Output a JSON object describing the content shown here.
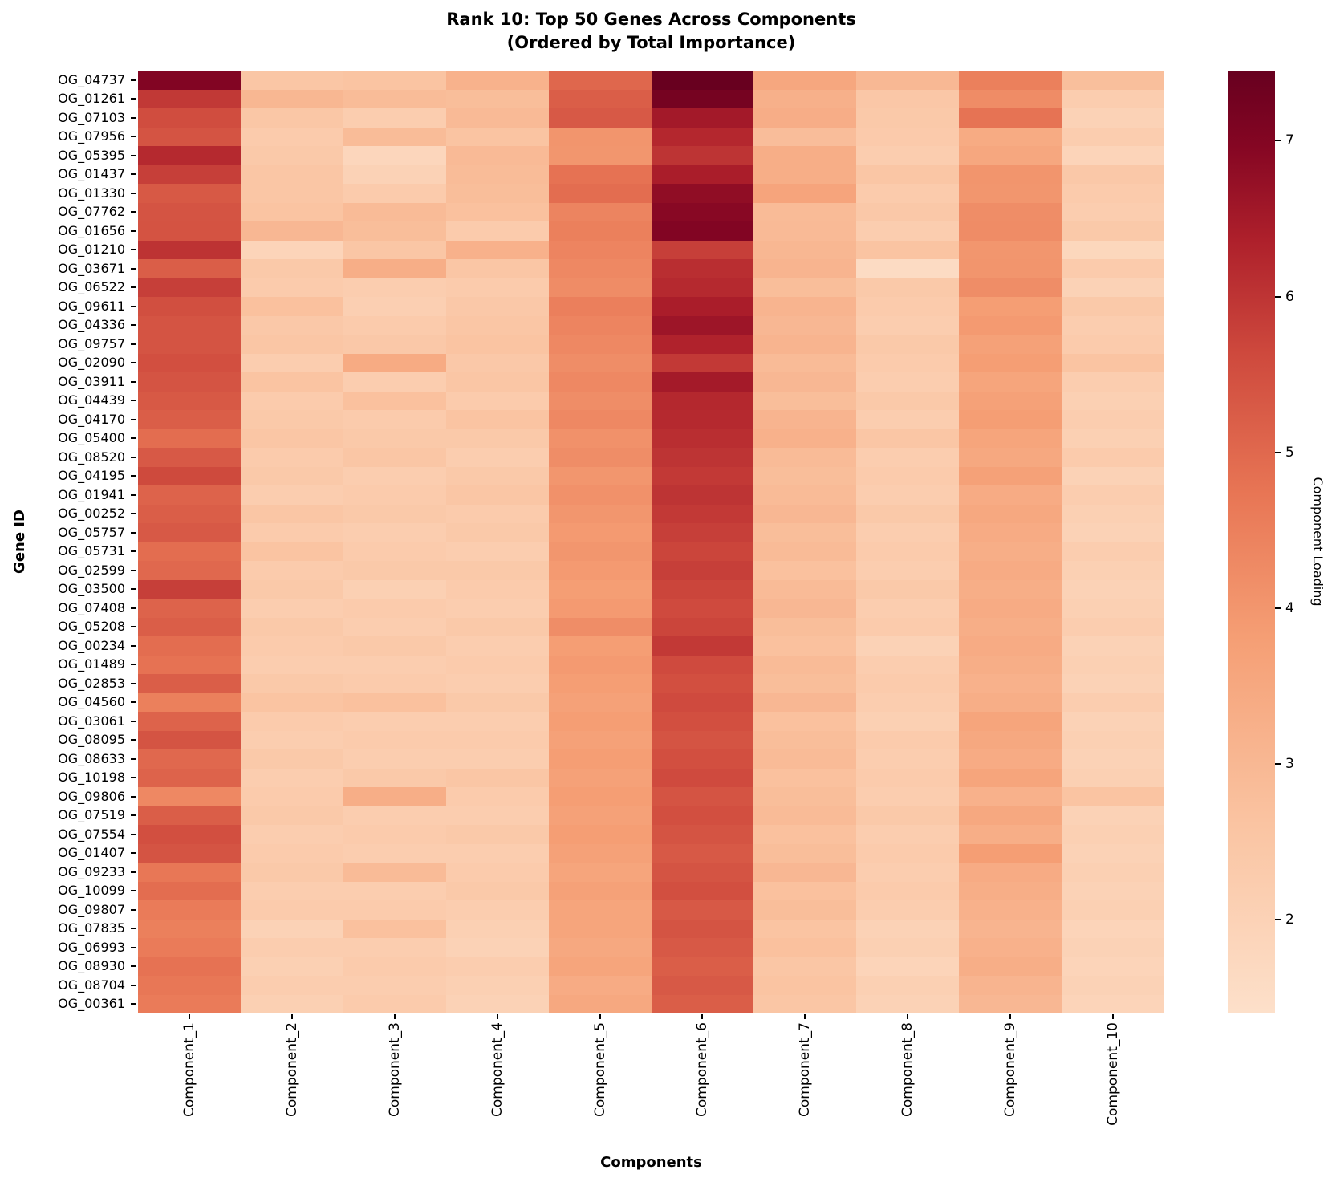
{
  "chart_data": {
    "type": "heatmap",
    "title": "Rank 10: Top 50 Genes Across Components (Ordered by Total Importance)",
    "title_line1": "Rank 10: Top 50 Genes Across Components",
    "title_line2": "(Ordered by Total Importance)",
    "xlabel": "Components",
    "ylabel": "Gene ID",
    "colorbar_label": "Component Loading",
    "colorbar_ticks": [
      7,
      6,
      5,
      4,
      3,
      2
    ],
    "vmin": 1.4,
    "vmax": 7.45,
    "legend_position": "right-colorbar",
    "grid": false,
    "colormap_stops": [
      [
        0.0,
        "#fde0ca"
      ],
      [
        0.2,
        "#fac4a2"
      ],
      [
        0.4,
        "#f59e74"
      ],
      [
        0.55,
        "#e87655"
      ],
      [
        0.7,
        "#ce493d"
      ],
      [
        0.82,
        "#ae202b"
      ],
      [
        0.92,
        "#850623"
      ],
      [
        1.0,
        "#67001f"
      ]
    ],
    "x_categories": [
      "Component_1",
      "Component_2",
      "Component_3",
      "Component_4",
      "Component_5",
      "Component_6",
      "Component_7",
      "Component_8",
      "Component_9",
      "Component_10"
    ],
    "y_categories": [
      "OG_04737",
      "OG_01261",
      "OG_07103",
      "OG_07956",
      "OG_05395",
      "OG_01437",
      "OG_01330",
      "OG_07762",
      "OG_01656",
      "OG_01210",
      "OG_03671",
      "OG_06522",
      "OG_09611",
      "OG_04336",
      "OG_09757",
      "OG_02090",
      "OG_03911",
      "OG_04439",
      "OG_04170",
      "OG_05400",
      "OG_08520",
      "OG_04195",
      "OG_01941",
      "OG_00252",
      "OG_05757",
      "OG_05731",
      "OG_02599",
      "OG_03500",
      "OG_07408",
      "OG_05208",
      "OG_00234",
      "OG_01489",
      "OG_02853",
      "OG_04560",
      "OG_03061",
      "OG_08095",
      "OG_08633",
      "OG_10198",
      "OG_09806",
      "OG_07519",
      "OG_07554",
      "OG_01407",
      "OG_09233",
      "OG_10099",
      "OG_09807",
      "OG_07835",
      "OG_06993",
      "OG_08930",
      "OG_08704",
      "OG_00361"
    ],
    "values": [
      [
        7.02,
        2.52,
        2.61,
        3.18,
        5.03,
        7.43,
        3.52,
        2.98,
        4.51,
        2.77
      ],
      [
        5.92,
        3.02,
        2.88,
        2.81,
        5.22,
        7.21,
        3.24,
        2.46,
        4.22,
        2.21
      ],
      [
        5.55,
        2.48,
        2.21,
        2.92,
        5.31,
        6.52,
        3.33,
        2.41,
        4.78,
        2.02
      ],
      [
        5.41,
        2.32,
        2.88,
        2.62,
        4.02,
        6.23,
        2.83,
        2.33,
        3.42,
        2.22
      ],
      [
        6.21,
        2.41,
        1.82,
        2.92,
        4.01,
        6.01,
        3.31,
        2.21,
        3.52,
        1.92
      ],
      [
        5.81,
        2.52,
        2.02,
        2.88,
        4.81,
        6.42,
        3.32,
        2.52,
        4.02,
        2.42
      ],
      [
        5.32,
        2.51,
        2.32,
        2.81,
        4.91,
        6.81,
        3.62,
        2.31,
        4.01,
        2.31
      ],
      [
        5.42,
        2.62,
        2.91,
        2.72,
        4.42,
        6.92,
        2.91,
        2.42,
        4.21,
        2.21
      ],
      [
        5.43,
        3.01,
        2.81,
        2.31,
        4.51,
        7.01,
        2.92,
        2.21,
        4.22,
        2.41
      ],
      [
        6.02,
        1.91,
        2.52,
        3.21,
        4.41,
        5.81,
        3.02,
        2.61,
        4.01,
        1.81
      ],
      [
        5.22,
        2.41,
        3.32,
        2.52,
        4.32,
        6.12,
        3.12,
        1.62,
        4.02,
        2.31
      ],
      [
        5.81,
        2.32,
        2.21,
        2.32,
        4.22,
        6.21,
        2.81,
        2.41,
        4.21,
        2.02
      ],
      [
        5.52,
        2.72,
        2.12,
        2.42,
        4.52,
        6.42,
        3.12,
        2.31,
        3.81,
        2.41
      ],
      [
        5.42,
        2.42,
        2.32,
        2.52,
        4.41,
        6.61,
        3.01,
        2.21,
        3.91,
        2.21
      ],
      [
        5.41,
        2.52,
        2.42,
        2.61,
        4.31,
        6.32,
        3.11,
        2.41,
        3.71,
        2.31
      ],
      [
        5.51,
        2.21,
        3.42,
        2.42,
        4.21,
        5.91,
        2.91,
        2.31,
        3.81,
        2.61
      ],
      [
        5.42,
        2.61,
        2.21,
        2.51,
        4.31,
        6.51,
        3.01,
        2.21,
        3.61,
        2.21
      ],
      [
        5.32,
        2.32,
        2.71,
        2.31,
        4.21,
        6.22,
        2.81,
        2.41,
        3.71,
        2.11
      ],
      [
        5.21,
        2.41,
        2.31,
        2.61,
        4.31,
        6.21,
        3.11,
        2.21,
        3.81,
        2.21
      ],
      [
        4.91,
        2.51,
        2.41,
        2.41,
        4.11,
        6.11,
        3.21,
        2.51,
        3.61,
        2.11
      ],
      [
        5.31,
        2.31,
        2.51,
        2.21,
        4.21,
        6.01,
        2.91,
        2.21,
        3.51,
        2.31
      ],
      [
        5.62,
        2.41,
        2.21,
        2.41,
        4.01,
        5.91,
        2.81,
        2.31,
        3.71,
        2.01
      ],
      [
        5.11,
        2.21,
        2.31,
        2.51,
        4.11,
        6.01,
        2.91,
        2.21,
        3.41,
        2.21
      ],
      [
        5.21,
        2.51,
        2.41,
        2.31,
        4.01,
        5.91,
        3.01,
        2.41,
        3.51,
        2.11
      ],
      [
        5.31,
        2.31,
        2.21,
        2.41,
        3.91,
        5.81,
        2.81,
        2.21,
        3.41,
        2.01
      ],
      [
        4.91,
        2.61,
        2.31,
        2.21,
        4.01,
        5.71,
        2.91,
        2.31,
        3.31,
        2.21
      ],
      [
        5.01,
        2.31,
        2.41,
        2.41,
        3.91,
        5.81,
        2.71,
        2.21,
        3.41,
        2.11
      ],
      [
        5.81,
        2.41,
        2.11,
        2.31,
        3.81,
        5.71,
        2.91,
        2.41,
        3.31,
        2.01
      ],
      [
        5.11,
        2.21,
        2.31,
        2.21,
        3.91,
        5.61,
        3.01,
        2.21,
        3.41,
        2.11
      ],
      [
        5.21,
        2.41,
        2.21,
        2.41,
        4.21,
        5.71,
        2.81,
        2.31,
        3.31,
        2.21
      ],
      [
        4.91,
        2.31,
        2.41,
        2.21,
        3.81,
        5.91,
        2.71,
        2.01,
        3.41,
        2.01
      ],
      [
        4.81,
        2.21,
        2.21,
        2.31,
        3.91,
        5.61,
        2.91,
        2.21,
        3.31,
        2.11
      ],
      [
        5.21,
        2.41,
        2.31,
        2.21,
        3.81,
        5.51,
        2.81,
        2.31,
        3.21,
        2.01
      ],
      [
        4.51,
        2.61,
        2.71,
        2.41,
        3.71,
        5.61,
        3.01,
        2.21,
        3.31,
        2.21
      ],
      [
        5.11,
        2.31,
        2.21,
        2.21,
        3.81,
        5.51,
        2.71,
        2.11,
        3.61,
        2.01
      ],
      [
        5.41,
        2.21,
        2.31,
        2.31,
        3.71,
        5.41,
        2.81,
        2.31,
        3.51,
        2.11
      ],
      [
        5.01,
        2.41,
        2.21,
        2.21,
        3.81,
        5.51,
        2.91,
        2.21,
        3.41,
        2.01
      ],
      [
        5.11,
        2.21,
        2.41,
        2.51,
        3.71,
        5.61,
        2.71,
        2.31,
        3.61,
        2.11
      ],
      [
        4.31,
        2.31,
        3.31,
        2.31,
        3.81,
        5.41,
        2.81,
        2.21,
        3.21,
        2.61
      ],
      [
        5.21,
        2.41,
        2.21,
        2.21,
        3.71,
        5.51,
        2.91,
        2.41,
        3.51,
        2.01
      ],
      [
        5.51,
        2.21,
        2.31,
        2.41,
        3.81,
        5.41,
        2.71,
        2.21,
        3.31,
        2.11
      ],
      [
        5.41,
        2.31,
        2.21,
        2.21,
        3.71,
        5.31,
        2.81,
        2.31,
        3.81,
        2.01
      ],
      [
        4.71,
        2.41,
        2.91,
        2.31,
        3.61,
        5.41,
        3.01,
        2.21,
        3.41,
        2.11
      ],
      [
        4.91,
        2.21,
        2.21,
        2.41,
        3.71,
        5.51,
        2.71,
        2.31,
        3.31,
        2.01
      ],
      [
        4.61,
        2.31,
        2.31,
        2.21,
        3.61,
        5.31,
        2.81,
        2.21,
        3.21,
        2.11
      ],
      [
        4.51,
        2.01,
        2.71,
        2.11,
        3.61,
        5.41,
        2.61,
        2.01,
        3.11,
        1.91
      ],
      [
        4.61,
        2.21,
        2.21,
        2.01,
        3.51,
        5.31,
        2.71,
        2.11,
        3.21,
        2.01
      ],
      [
        4.81,
        2.11,
        2.31,
        2.21,
        3.61,
        5.21,
        2.51,
        1.91,
        3.31,
        1.91
      ],
      [
        4.71,
        2.21,
        2.21,
        2.11,
        3.41,
        5.31,
        2.61,
        2.11,
        3.11,
        2.01
      ],
      [
        4.61,
        2.11,
        2.31,
        2.01,
        3.51,
        5.21,
        2.51,
        2.01,
        3.01,
        1.91
      ]
    ]
  }
}
